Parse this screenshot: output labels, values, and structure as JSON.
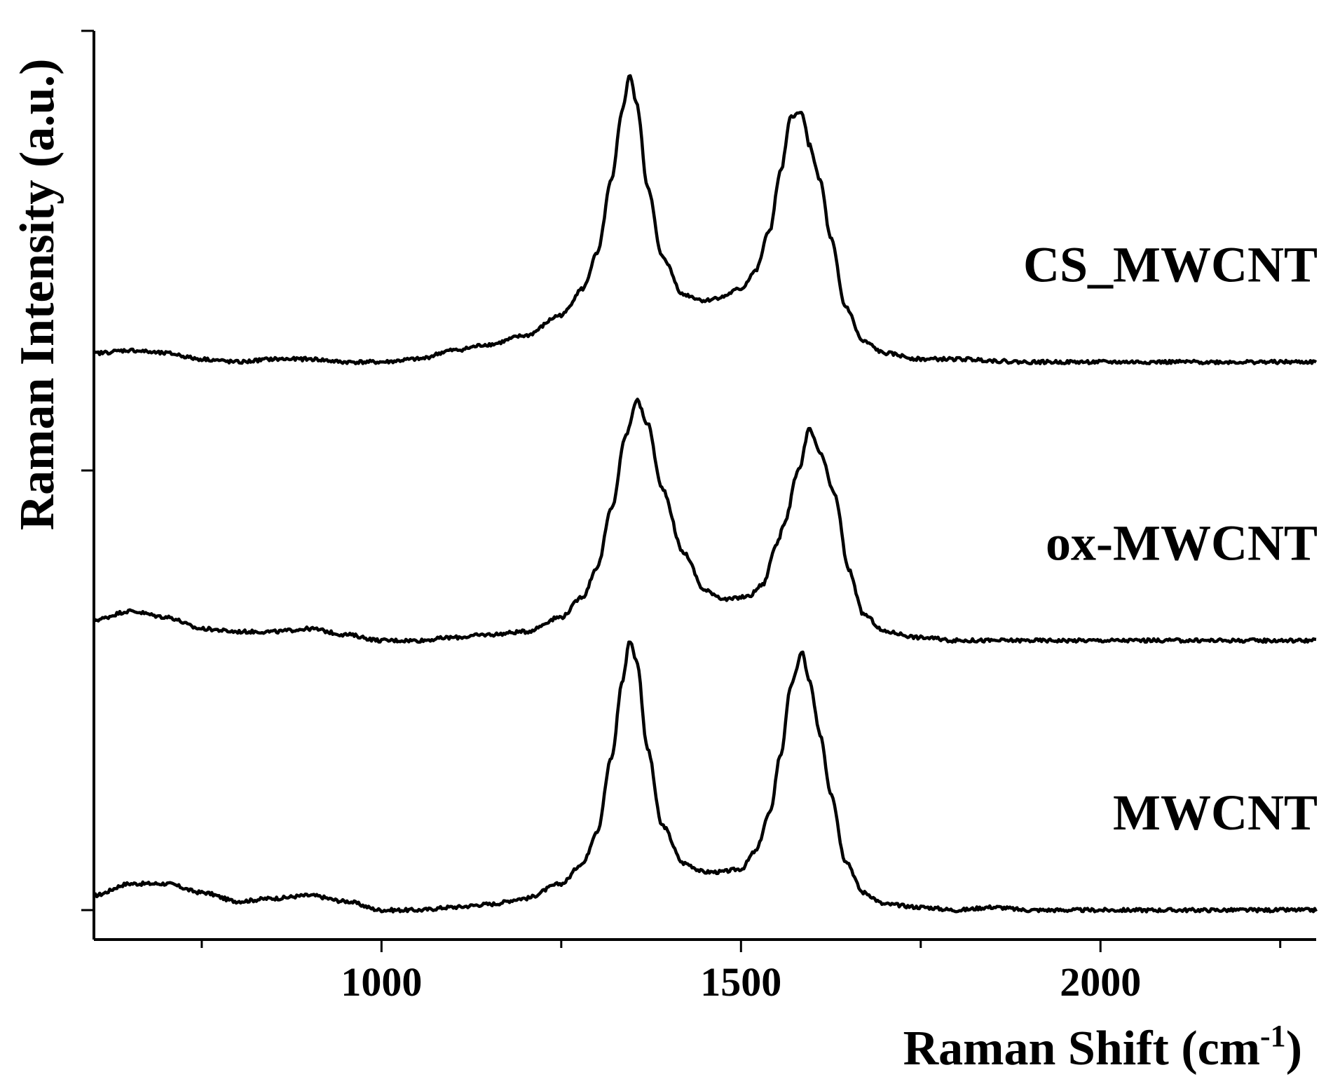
{
  "chart_data": {
    "type": "line",
    "title": "",
    "xlabel": "Raman Shift (cm",
    "xlabel_sup": "-1",
    "xlabel_close": ")",
    "ylabel": "Raman Intensity (a.u.)",
    "xlim": [
      600,
      2300
    ],
    "x_ticks_major": [
      1000,
      1500,
      2000
    ],
    "x_tick_labels": [
      "1000",
      "1500",
      "2000"
    ],
    "x_ticks_minor": [
      750,
      1250,
      1750,
      2250
    ],
    "y_ticks": 3,
    "ylim": [
      0,
      3.1
    ],
    "legend": "none",
    "grid": false,
    "series": [
      {
        "name": "MWCNT",
        "offset": 0.0,
        "x": [
          600,
          650,
          700,
          750,
          800,
          850,
          900,
          950,
          1000,
          1050,
          1100,
          1150,
          1200,
          1250,
          1280,
          1300,
          1320,
          1335,
          1345,
          1355,
          1370,
          1390,
          1420,
          1450,
          1470,
          1500,
          1520,
          1540,
          1555,
          1570,
          1585,
          1595,
          1610,
          1625,
          1645,
          1670,
          1700,
          1750,
          1800,
          1850,
          1900,
          2000,
          2100,
          2200,
          2300
        ],
        "y": [
          0.05,
          0.09,
          0.09,
          0.06,
          0.03,
          0.04,
          0.05,
          0.03,
          0.0,
          0.0,
          0.01,
          0.02,
          0.04,
          0.09,
          0.16,
          0.27,
          0.52,
          0.78,
          0.92,
          0.85,
          0.55,
          0.29,
          0.16,
          0.13,
          0.13,
          0.14,
          0.2,
          0.33,
          0.53,
          0.77,
          0.88,
          0.78,
          0.6,
          0.4,
          0.17,
          0.06,
          0.02,
          0.01,
          0.0,
          0.01,
          0.0,
          0.0,
          0.0,
          0.0,
          0.0
        ]
      },
      {
        "name": "ox-MWCNT",
        "offset": 0.92,
        "x": [
          600,
          650,
          700,
          750,
          800,
          850,
          900,
          950,
          1000,
          1050,
          1100,
          1150,
          1200,
          1250,
          1280,
          1300,
          1320,
          1340,
          1355,
          1370,
          1390,
          1420,
          1450,
          1480,
          1510,
          1530,
          1550,
          1560,
          1580,
          1595,
          1610,
          1630,
          1650,
          1670,
          1700,
          1750,
          1800,
          1900,
          2000,
          2100,
          2200,
          2300
        ],
        "y": [
          0.07,
          0.1,
          0.08,
          0.04,
          0.03,
          0.03,
          0.04,
          0.02,
          0.0,
          0.0,
          0.01,
          0.02,
          0.03,
          0.08,
          0.15,
          0.25,
          0.45,
          0.7,
          0.82,
          0.74,
          0.52,
          0.3,
          0.17,
          0.14,
          0.15,
          0.19,
          0.33,
          0.4,
          0.58,
          0.72,
          0.64,
          0.5,
          0.24,
          0.09,
          0.03,
          0.01,
          0.0,
          0.0,
          0.0,
          0.0,
          0.0,
          0.0
        ]
      },
      {
        "name": "CS_MWCNT",
        "offset": 1.87,
        "x": [
          600,
          650,
          700,
          750,
          800,
          850,
          900,
          950,
          1000,
          1050,
          1100,
          1150,
          1200,
          1250,
          1280,
          1300,
          1320,
          1335,
          1345,
          1355,
          1370,
          1390,
          1420,
          1450,
          1470,
          1500,
          1520,
          1540,
          1555,
          1570,
          1585,
          1595,
          1610,
          1625,
          1645,
          1670,
          1700,
          1750,
          1800,
          1900,
          2000,
          2100,
          2200,
          2300
        ],
        "y": [
          0.03,
          0.04,
          0.03,
          0.01,
          0.0,
          0.01,
          0.01,
          0.0,
          0.0,
          0.01,
          0.04,
          0.06,
          0.09,
          0.16,
          0.25,
          0.37,
          0.62,
          0.86,
          0.98,
          0.88,
          0.6,
          0.36,
          0.23,
          0.21,
          0.22,
          0.25,
          0.31,
          0.45,
          0.65,
          0.84,
          0.85,
          0.74,
          0.62,
          0.42,
          0.19,
          0.07,
          0.03,
          0.01,
          0.01,
          0.0,
          0.0,
          0.0,
          0.0,
          0.0
        ]
      }
    ]
  }
}
